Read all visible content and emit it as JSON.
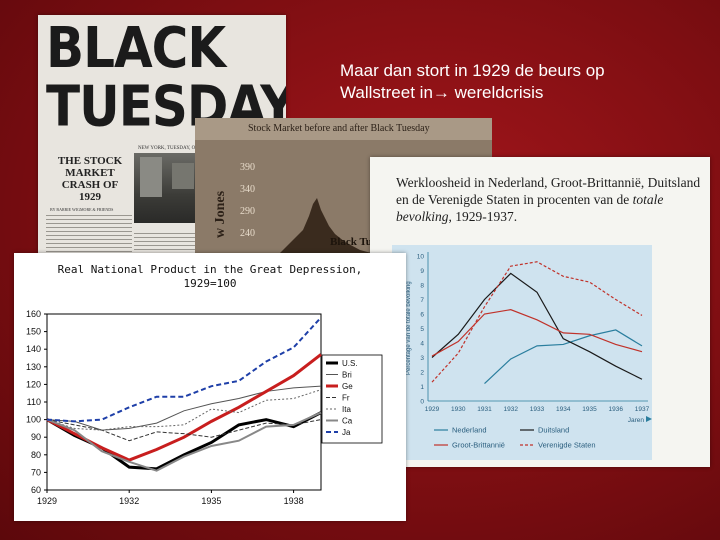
{
  "slide": {
    "title_line1": "Maar dan stort in 1929 de beurs op",
    "title_line2": "Wallstreet in→ wereldcrisis"
  },
  "newspaper": {
    "headline_1": "BLACK",
    "headline_2": "TUESDAY",
    "dateline": "NEW YORK, TUESDAY, OCTOBER 29, 1929",
    "crash_title": "THE STOCK MARKET CRASH OF 1929",
    "byline": "BY BARRIE WIGMORE & FRIENDS"
  },
  "stock_chart": {
    "title": "Stock Market before and after Black Tuesday",
    "y_ticks": [
      "390",
      "340",
      "290",
      "240"
    ],
    "ylabel": "w Jones",
    "label": "Black Tuesday",
    "colors": {
      "area": "#3a2b1e",
      "panel": "#8b7a68"
    }
  },
  "unemployment": {
    "title_part1": "Werkloosheid in Nederland, Groot-Brittannië, Duitsland en de Verenigde Staten in procenten van de ",
    "title_italic": "totale bevolking",
    "title_part2": ", 1929-1937.",
    "ylabel": "Percentage van de totale bevolking",
    "xlabel": "Jaren",
    "legend": {
      "nl": "Nederland",
      "gb": "Groot-Brittannië",
      "de": "Duitsland",
      "us": "Verenigde Staten"
    }
  },
  "gnp": {
    "title_line1": "Real National Product in the Great Depression,",
    "title_line2": "1929=100",
    "legend": [
      "U.S.",
      "Bri",
      "Ge",
      "Fr",
      "Ita",
      "Ca",
      "Ja"
    ]
  },
  "chart_data": [
    {
      "type": "line",
      "title": "Real National Product in the Great Depression, 1929=100",
      "xlabel": "",
      "ylabel": "",
      "x": [
        1929,
        1930,
        1931,
        1932,
        1933,
        1934,
        1935,
        1936,
        1937,
        1938,
        1939
      ],
      "x_ticks": [
        "1929",
        "1932",
        "1935",
        "1938"
      ],
      "y_ticks": [
        "60",
        "70",
        "80",
        "90",
        "100",
        "110",
        "120",
        "130",
        "140",
        "150",
        "160"
      ],
      "ylim": [
        60,
        160
      ],
      "series": [
        {
          "name": "U.S.",
          "color": "#000000",
          "dash": "",
          "width": 3,
          "values": [
            100,
            91,
            84,
            73,
            72,
            80,
            87,
            97,
            100,
            96,
            104
          ]
        },
        {
          "name": "Bri",
          "color": "#555555",
          "dash": "",
          "width": 1,
          "values": [
            100,
            99,
            94,
            95,
            98,
            105,
            109,
            112,
            116,
            118,
            119
          ]
        },
        {
          "name": "Ge",
          "color": "#c81e1e",
          "dash": "",
          "width": 3,
          "values": [
            100,
            92,
            84,
            77,
            83,
            90,
            99,
            107,
            116,
            125,
            137
          ]
        },
        {
          "name": "Fr",
          "color": "#333333",
          "dash": "4 2",
          "width": 1,
          "values": [
            100,
            97,
            94,
            88,
            93,
            92,
            90,
            94,
            98,
            97,
            100
          ]
        },
        {
          "name": "Ita",
          "color": "#666666",
          "dash": "2 2",
          "width": 1,
          "values": [
            100,
            95,
            94,
            96,
            96,
            97,
            106,
            104,
            111,
            112,
            117
          ]
        },
        {
          "name": "Ca",
          "color": "#888888",
          "dash": "",
          "width": 2,
          "values": [
            100,
            94,
            82,
            76,
            71,
            79,
            85,
            88,
            96,
            97,
            104
          ]
        },
        {
          "name": "Ja",
          "color": "#1e3fa8",
          "dash": "5 3",
          "width": 2,
          "values": [
            100,
            99,
            100,
            107,
            113,
            113,
            119,
            122,
            133,
            141,
            158
          ]
        }
      ],
      "legend_position": "right"
    },
    {
      "type": "line",
      "title": "Werkloosheid in Nederland, Groot-Brittannië, Duitsland en de Verenigde Staten in procenten van de totale bevolking, 1929-1937.",
      "xlabel": "Jaren",
      "ylabel": "Percentage van de totale bevolking",
      "x": [
        1929,
        1930,
        1931,
        1932,
        1933,
        1934,
        1935,
        1936,
        1937
      ],
      "x_ticks": [
        "1929",
        "1930",
        "1931",
        "1932",
        "1933",
        "1934",
        "1935",
        "1936",
        "1937"
      ],
      "y_ticks": [
        "0",
        "1",
        "2",
        "3",
        "4",
        "5",
        "6",
        "7",
        "8",
        "9",
        "10"
      ],
      "ylim": [
        0,
        10
      ],
      "series": [
        {
          "name": "Nederland",
          "color": "#2a7e9e",
          "dash": "",
          "width": 1.2,
          "values": [
            null,
            null,
            1.2,
            2.9,
            3.8,
            3.9,
            4.5,
            4.9,
            3.8
          ]
        },
        {
          "name": "Duitsland",
          "color": "#1a1a1a",
          "dash": "",
          "width": 1.2,
          "values": [
            3.0,
            4.6,
            7.0,
            8.8,
            7.5,
            4.3,
            3.4,
            2.4,
            1.5
          ]
        },
        {
          "name": "Groot-Brittannië",
          "color": "#c0322a",
          "dash": "",
          "width": 1.2,
          "values": [
            3.1,
            4.1,
            6.0,
            6.3,
            5.6,
            4.7,
            4.6,
            3.9,
            3.4
          ]
        },
        {
          "name": "Verenigde Staten",
          "color": "#c0322a",
          "dash": "3 2",
          "width": 1.2,
          "values": [
            1.3,
            3.3,
            6.5,
            9.3,
            9.6,
            8.6,
            8.2,
            7.0,
            5.9
          ]
        }
      ],
      "legend_position": "bottom"
    }
  ]
}
